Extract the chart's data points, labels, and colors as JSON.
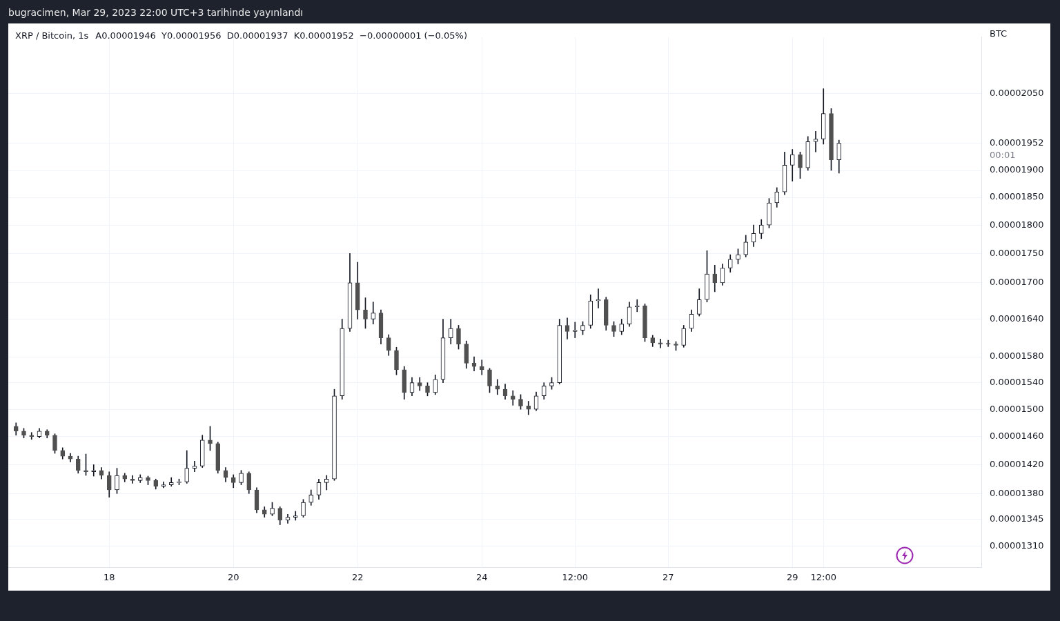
{
  "chart_data": {
    "type": "candlestick",
    "title": "XRP / Bitcoin, 1s",
    "subtitle": "A0.00001946  Y0.00001956  D0.00001937  K0.00001952  −0.00000001 (−0.05%)",
    "ylabel": "BTC",
    "annotations": [
      "bugracimen, Mar 29, 2023 22:00 UTC+3 tarihinde yayınlandı",
      "00:01"
    ],
    "log": "y",
    "grid": true,
    "color": "#131722",
    "xlim": [
      "2023-03-16T09:00",
      "2023-04-01T01:00"
    ],
    "xticks": [
      {
        "value": "2023-03-18",
        "label": "18"
      },
      {
        "value": "2023-03-20",
        "label": "20"
      },
      {
        "value": "2023-03-22",
        "label": "22"
      },
      {
        "value": "2023-03-24",
        "label": "24"
      },
      {
        "value": "2023-03-25T12:00",
        "label": "12:00"
      },
      {
        "value": "2023-03-27",
        "label": "27"
      },
      {
        "value": "2023-03-29",
        "label": "29"
      },
      {
        "value": "2023-03-29T12:00",
        "label": "12:00"
      }
    ],
    "ylim": [
      1.283e-05,
      2.168e-05
    ],
    "yticks": [
      {
        "value": 1.31e-05,
        "label": "0.00001310"
      },
      {
        "value": 1.345e-05,
        "label": "0.00001345"
      },
      {
        "value": 1.38e-05,
        "label": "0.00001380"
      },
      {
        "value": 1.42e-05,
        "label": "0.00001420"
      },
      {
        "value": 1.46e-05,
        "label": "0.00001460"
      },
      {
        "value": 1.5e-05,
        "label": "0.00001500"
      },
      {
        "value": 1.54e-05,
        "label": "0.00001540"
      },
      {
        "value": 1.58e-05,
        "label": "0.00001580"
      },
      {
        "value": 1.64e-05,
        "label": "0.00001640"
      },
      {
        "value": 1.7e-05,
        "label": "0.00001700"
      },
      {
        "value": 1.75e-05,
        "label": "0.00001750"
      },
      {
        "value": 1.8e-05,
        "label": "0.00001800"
      },
      {
        "value": 1.85e-05,
        "label": "0.00001850"
      },
      {
        "value": 1.9e-05,
        "label": "0.00001900"
      },
      {
        "value": 1.952e-05,
        "label": "0.00001952"
      },
      {
        "value": 2.05e-05,
        "label": "0.00002050"
      }
    ],
    "x": [
      "2023-03-16T12:00",
      "2023-03-16T15:00",
      "2023-03-16T18:00",
      "2023-03-16T21:00",
      "2023-03-17T00:00",
      "2023-03-17T03:00",
      "2023-03-17T06:00",
      "2023-03-17T09:00",
      "2023-03-17T12:00",
      "2023-03-17T15:00",
      "2023-03-17T18:00",
      "2023-03-17T21:00",
      "2023-03-18T00:00",
      "2023-03-18T03:00",
      "2023-03-18T06:00",
      "2023-03-18T09:00",
      "2023-03-18T12:00",
      "2023-03-18T15:00",
      "2023-03-18T18:00",
      "2023-03-18T21:00",
      "2023-03-19T00:00",
      "2023-03-19T03:00",
      "2023-03-19T06:00",
      "2023-03-19T09:00",
      "2023-03-19T12:00",
      "2023-03-19T15:00",
      "2023-03-19T18:00",
      "2023-03-19T21:00",
      "2023-03-20T00:00",
      "2023-03-20T03:00",
      "2023-03-20T06:00",
      "2023-03-20T09:00",
      "2023-03-20T12:00",
      "2023-03-20T15:00",
      "2023-03-20T18:00",
      "2023-03-20T21:00",
      "2023-03-21T00:00",
      "2023-03-21T03:00",
      "2023-03-21T06:00",
      "2023-03-21T09:00",
      "2023-03-21T12:00",
      "2023-03-21T15:00",
      "2023-03-21T18:00",
      "2023-03-21T21:00",
      "2023-03-22T00:00",
      "2023-03-22T03:00",
      "2023-03-22T06:00",
      "2023-03-22T09:00",
      "2023-03-22T12:00",
      "2023-03-22T15:00",
      "2023-03-22T18:00",
      "2023-03-22T21:00",
      "2023-03-23T00:00",
      "2023-03-23T03:00",
      "2023-03-23T06:00",
      "2023-03-23T09:00",
      "2023-03-23T12:00",
      "2023-03-23T15:00",
      "2023-03-23T18:00",
      "2023-03-23T21:00",
      "2023-03-24T00:00",
      "2023-03-24T03:00",
      "2023-03-24T06:00",
      "2023-03-24T09:00",
      "2023-03-24T12:00",
      "2023-03-24T15:00",
      "2023-03-24T18:00",
      "2023-03-24T21:00",
      "2023-03-25T00:00",
      "2023-03-25T03:00",
      "2023-03-25T06:00",
      "2023-03-25T09:00",
      "2023-03-25T12:00",
      "2023-03-25T15:00",
      "2023-03-25T18:00",
      "2023-03-25T21:00",
      "2023-03-26T00:00",
      "2023-03-26T03:00",
      "2023-03-26T06:00",
      "2023-03-26T09:00",
      "2023-03-26T12:00",
      "2023-03-26T15:00",
      "2023-03-26T18:00",
      "2023-03-26T21:00",
      "2023-03-27T00:00",
      "2023-03-27T03:00",
      "2023-03-27T06:00",
      "2023-03-27T09:00",
      "2023-03-27T12:00",
      "2023-03-27T15:00",
      "2023-03-27T18:00",
      "2023-03-27T21:00",
      "2023-03-28T00:00",
      "2023-03-28T03:00",
      "2023-03-28T06:00",
      "2023-03-28T09:00",
      "2023-03-28T12:00",
      "2023-03-28T15:00",
      "2023-03-28T18:00",
      "2023-03-28T21:00",
      "2023-03-29T00:00",
      "2023-03-29T03:00",
      "2023-03-29T06:00",
      "2023-03-29T09:00",
      "2023-03-29T12:00",
      "2023-03-29T15:00",
      "2023-03-29T18:00"
    ],
    "ohlc": [
      [
        1.475e-05,
        1.48e-05,
        1.462e-05,
        1.468e-05
      ],
      [
        1.468e-05,
        1.472e-05,
        1.458e-05,
        1.462e-05
      ],
      [
        1.462e-05,
        1.466e-05,
        1.456e-05,
        1.46e-05
      ],
      [
        1.46e-05,
        1.472e-05,
        1.458e-05,
        1.468e-05
      ],
      [
        1.468e-05,
        1.47e-05,
        1.458e-05,
        1.462e-05
      ],
      [
        1.462e-05,
        1.464e-05,
        1.436e-05,
        1.44e-05
      ],
      [
        1.44e-05,
        1.444e-05,
        1.428e-05,
        1.432e-05
      ],
      [
        1.432e-05,
        1.436e-05,
        1.424e-05,
        1.428e-05
      ],
      [
        1.428e-05,
        1.432e-05,
        1.408e-05,
        1.412e-05
      ],
      [
        1.412e-05,
        1.435e-05,
        1.405e-05,
        1.41e-05
      ],
      [
        1.41e-05,
        1.42e-05,
        1.404e-05,
        1.412e-05
      ],
      [
        1.412e-05,
        1.416e-05,
        1.4e-05,
        1.405e-05
      ],
      [
        1.405e-05,
        1.41e-05,
        1.375e-05,
        1.385e-05
      ],
      [
        1.385e-05,
        1.415e-05,
        1.38e-05,
        1.405e-05
      ],
      [
        1.405e-05,
        1.408e-05,
        1.396e-05,
        1.4e-05
      ],
      [
        1.4e-05,
        1.405e-05,
        1.394e-05,
        1.398e-05
      ],
      [
        1.398e-05,
        1.406e-05,
        1.395e-05,
        1.402e-05
      ],
      [
        1.402e-05,
        1.404e-05,
        1.392e-05,
        1.398e-05
      ],
      [
        1.398e-05,
        1.4e-05,
        1.386e-05,
        1.39e-05
      ],
      [
        1.39e-05,
        1.396e-05,
        1.388e-05,
        1.392e-05
      ],
      [
        1.392e-05,
        1.402e-05,
        1.39e-05,
        1.395e-05
      ],
      [
        1.395e-05,
        1.4e-05,
        1.392e-05,
        1.396e-05
      ],
      [
        1.396e-05,
        1.44e-05,
        1.394e-05,
        1.415e-05
      ],
      [
        1.415e-05,
        1.425e-05,
        1.41e-05,
        1.418e-05
      ],
      [
        1.418e-05,
        1.462e-05,
        1.416e-05,
        1.455e-05
      ],
      [
        1.455e-05,
        1.475e-05,
        1.44e-05,
        1.45e-05
      ],
      [
        1.45e-05,
        1.452e-05,
        1.408e-05,
        1.412e-05
      ],
      [
        1.412e-05,
        1.416e-05,
        1.396e-05,
        1.402e-05
      ],
      [
        1.402e-05,
        1.406e-05,
        1.388e-05,
        1.395e-05
      ],
      [
        1.395e-05,
        1.412e-05,
        1.392e-05,
        1.408e-05
      ],
      [
        1.408e-05,
        1.41e-05,
        1.38e-05,
        1.385e-05
      ],
      [
        1.385e-05,
        1.388e-05,
        1.354e-05,
        1.358e-05
      ],
      [
        1.358e-05,
        1.362e-05,
        1.348e-05,
        1.352e-05
      ],
      [
        1.352e-05,
        1.368e-05,
        1.35e-05,
        1.36e-05
      ],
      [
        1.36e-05,
        1.362e-05,
        1.338e-05,
        1.344e-05
      ],
      [
        1.344e-05,
        1.352e-05,
        1.34e-05,
        1.348e-05
      ],
      [
        1.348e-05,
        1.356e-05,
        1.344e-05,
        1.35e-05
      ],
      [
        1.35e-05,
        1.372e-05,
        1.348e-05,
        1.368e-05
      ],
      [
        1.368e-05,
        1.385e-05,
        1.364e-05,
        1.378e-05
      ],
      [
        1.378e-05,
        1.4e-05,
        1.372e-05,
        1.395e-05
      ],
      [
        1.395e-05,
        1.405e-05,
        1.385e-05,
        1.4e-05
      ],
      [
        1.4e-05,
        1.53e-05,
        1.398e-05,
        1.52e-05
      ],
      [
        1.52e-05,
        1.64e-05,
        1.515e-05,
        1.625e-05
      ],
      [
        1.625e-05,
        1.75e-05,
        1.62e-05,
        1.7e-05
      ],
      [
        1.7e-05,
        1.735e-05,
        1.64e-05,
        1.655e-05
      ],
      [
        1.655e-05,
        1.675e-05,
        1.625e-05,
        1.64e-05
      ],
      [
        1.64e-05,
        1.668e-05,
        1.632e-05,
        1.65e-05
      ],
      [
        1.65e-05,
        1.655e-05,
        1.6e-05,
        1.61e-05
      ],
      [
        1.61e-05,
        1.615e-05,
        1.582e-05,
        1.59e-05
      ],
      [
        1.59e-05,
        1.595e-05,
        1.552e-05,
        1.56e-05
      ],
      [
        1.56e-05,
        1.565e-05,
        1.515e-05,
        1.525e-05
      ],
      [
        1.525e-05,
        1.548e-05,
        1.52e-05,
        1.54e-05
      ],
      [
        1.54e-05,
        1.548e-05,
        1.528e-05,
        1.535e-05
      ],
      [
        1.535e-05,
        1.54e-05,
        1.52e-05,
        1.525e-05
      ],
      [
        1.525e-05,
        1.552e-05,
        1.522e-05,
        1.545e-05
      ],
      [
        1.545e-05,
        1.64e-05,
        1.54e-05,
        1.61e-05
      ],
      [
        1.61e-05,
        1.64e-05,
        1.6e-05,
        1.625e-05
      ],
      [
        1.625e-05,
        1.63e-05,
        1.592e-05,
        1.6e-05
      ],
      [
        1.6e-05,
        1.605e-05,
        1.562e-05,
        1.57e-05
      ],
      [
        1.57e-05,
        1.58e-05,
        1.558e-05,
        1.565e-05
      ],
      [
        1.565e-05,
        1.575e-05,
        1.552e-05,
        1.56e-05
      ],
      [
        1.56e-05,
        1.562e-05,
        1.525e-05,
        1.535e-05
      ],
      [
        1.535e-05,
        1.545e-05,
        1.522e-05,
        1.53e-05
      ],
      [
        1.53e-05,
        1.538e-05,
        1.515e-05,
        1.52e-05
      ],
      [
        1.52e-05,
        1.528e-05,
        1.506e-05,
        1.515e-05
      ],
      [
        1.515e-05,
        1.522e-05,
        1.5e-05,
        1.505e-05
      ],
      [
        1.505e-05,
        1.512e-05,
        1.492e-05,
        1.5e-05
      ],
      [
        1.5e-05,
        1.526e-05,
        1.498e-05,
        1.52e-05
      ],
      [
        1.52e-05,
        1.54e-05,
        1.515e-05,
        1.535e-05
      ],
      [
        1.535e-05,
        1.548e-05,
        1.53e-05,
        1.54e-05
      ],
      [
        1.54e-05,
        1.64e-05,
        1.538e-05,
        1.63e-05
      ],
      [
        1.63e-05,
        1.642e-05,
        1.608e-05,
        1.62e-05
      ],
      [
        1.62e-05,
        1.635e-05,
        1.61e-05,
        1.622e-05
      ],
      [
        1.622e-05,
        1.636e-05,
        1.615e-05,
        1.63e-05
      ],
      [
        1.63e-05,
        1.68e-05,
        1.625e-05,
        1.67e-05
      ],
      [
        1.67e-05,
        1.69e-05,
        1.658e-05,
        1.672e-05
      ],
      [
        1.672e-05,
        1.676e-05,
        1.622e-05,
        1.63e-05
      ],
      [
        1.63e-05,
        1.636e-05,
        1.612e-05,
        1.62e-05
      ],
      [
        1.62e-05,
        1.64e-05,
        1.615e-05,
        1.632e-05
      ],
      [
        1.632e-05,
        1.668e-05,
        1.628e-05,
        1.66e-05
      ],
      [
        1.66e-05,
        1.672e-05,
        1.652e-05,
        1.662e-05
      ],
      [
        1.662e-05,
        1.665e-05,
        1.604e-05,
        1.61e-05
      ],
      [
        1.61e-05,
        1.614e-05,
        1.596e-05,
        1.602e-05
      ],
      [
        1.602e-05,
        1.608e-05,
        1.594e-05,
        1.6e-05
      ],
      [
        1.6e-05,
        1.606e-05,
        1.596e-05,
        1.6e-05
      ],
      [
        1.6e-05,
        1.604e-05,
        1.59e-05,
        1.598e-05
      ],
      [
        1.598e-05,
        1.63e-05,
        1.595e-05,
        1.625e-05
      ],
      [
        1.625e-05,
        1.655e-05,
        1.62e-05,
        1.648e-05
      ],
      [
        1.648e-05,
        1.69e-05,
        1.645e-05,
        1.672e-05
      ],
      [
        1.672e-05,
        1.755e-05,
        1.668e-05,
        1.715e-05
      ],
      [
        1.715e-05,
        1.73e-05,
        1.685e-05,
        1.7e-05
      ],
      [
        1.7e-05,
        1.732e-05,
        1.696e-05,
        1.725e-05
      ],
      [
        1.725e-05,
        1.748e-05,
        1.718e-05,
        1.74e-05
      ],
      [
        1.74e-05,
        1.758e-05,
        1.732e-05,
        1.748e-05
      ],
      [
        1.748e-05,
        1.782e-05,
        1.744e-05,
        1.77e-05
      ],
      [
        1.77e-05,
        1.8e-05,
        1.762e-05,
        1.785e-05
      ],
      [
        1.785e-05,
        1.81e-05,
        1.776e-05,
        1.8e-05
      ],
      [
        1.8e-05,
        1.848e-05,
        1.795e-05,
        1.84e-05
      ],
      [
        1.84e-05,
        1.868e-05,
        1.832e-05,
        1.86e-05
      ],
      [
        1.86e-05,
        1.935e-05,
        1.855e-05,
        1.91e-05
      ],
      [
        1.91e-05,
        1.94e-05,
        1.88e-05,
        1.93e-05
      ],
      [
        1.93e-05,
        1.935e-05,
        1.885e-05,
        1.905e-05
      ],
      [
        1.905e-05,
        1.965e-05,
        1.9e-05,
        1.955e-05
      ],
      [
        1.955e-05,
        1.975e-05,
        1.935e-05,
        1.96e-05
      ],
      [
        1.96e-05,
        2.06e-05,
        1.95e-05,
        2.01e-05
      ],
      [
        2.01e-05,
        2.02e-05,
        1.9e-05,
        1.92e-05
      ],
      [
        1.92e-05,
        1.958e-05,
        1.895e-05,
        1.952e-05
      ]
    ],
    "colors": [
      "#505050",
      "#505050",
      "#505050",
      "#131722",
      "#505050",
      "#505050",
      "#505050",
      "#505050",
      "#505050",
      "#505050",
      "#131722",
      "#505050",
      "#505050",
      "#131722",
      "#505050",
      "#505050",
      "#131722",
      "#505050",
      "#505050",
      "#131722",
      "#131722",
      "#131722",
      "#131722",
      "#131722",
      "#131722",
      "#505050",
      "#505050",
      "#505050",
      "#505050",
      "#131722",
      "#505050",
      "#505050",
      "#505050",
      "#131722",
      "#505050",
      "#131722",
      "#131722",
      "#131722",
      "#131722",
      "#131722",
      "#131722",
      "#131722",
      "#131722",
      "#131722",
      "#505050",
      "#505050",
      "#131722",
      "#505050",
      "#505050",
      "#505050",
      "#505050",
      "#131722",
      "#505050",
      "#505050",
      "#131722",
      "#131722",
      "#131722",
      "#505050",
      "#505050",
      "#505050",
      "#505050",
      "#505050",
      "#505050",
      "#505050",
      "#505050",
      "#505050",
      "#505050",
      "#131722",
      "#131722",
      "#131722",
      "#131722",
      "#505050",
      "#131722",
      "#131722",
      "#131722",
      "#131722",
      "#505050",
      "#505050",
      "#131722",
      "#131722",
      "#131722",
      "#505050",
      "#505050",
      "#505050",
      "#505050",
      "#505050",
      "#131722",
      "#131722",
      "#131722",
      "#131722",
      "#505050",
      "#131722",
      "#131722",
      "#131722",
      "#131722",
      "#131722",
      "#131722",
      "#131722",
      "#131722",
      "#131722",
      "#131722",
      "#505050",
      "#131722",
      "#131722",
      "#131722",
      "#505050",
      "#131722"
    ]
  }
}
